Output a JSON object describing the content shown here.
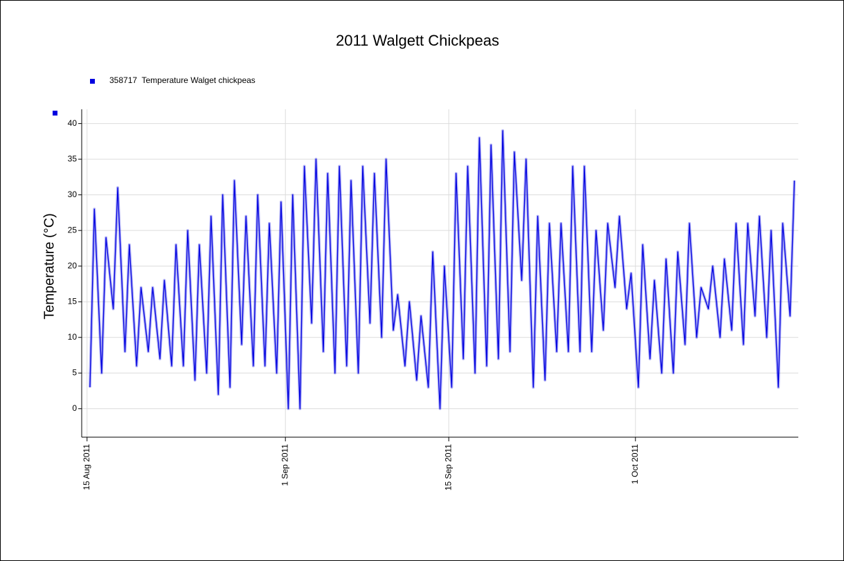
{
  "chart_data": {
    "type": "line",
    "title": "2011 Walgett Chickpeas",
    "y_label": "Temperature (°C)",
    "series": [
      {
        "name": "358717  Temperature Walget chickpeas",
        "color": "#0000e0",
        "x": [
          "2011-08-15T06:00",
          "2011-08-15T15:00",
          "2011-08-16T06:00",
          "2011-08-16T15:00",
          "2011-08-17T06:00",
          "2011-08-17T15:00",
          "2011-08-18T06:00",
          "2011-08-18T15:00",
          "2011-08-19T06:00",
          "2011-08-19T15:00",
          "2011-08-20T06:00",
          "2011-08-20T15:00",
          "2011-08-21T06:00",
          "2011-08-21T15:00",
          "2011-08-22T06:00",
          "2011-08-22T15:00",
          "2011-08-23T06:00",
          "2011-08-23T15:00",
          "2011-08-24T06:00",
          "2011-08-24T15:00",
          "2011-08-25T06:00",
          "2011-08-25T15:00",
          "2011-08-26T06:00",
          "2011-08-26T15:00",
          "2011-08-27T06:00",
          "2011-08-27T15:00",
          "2011-08-28T06:00",
          "2011-08-28T15:00",
          "2011-08-29T06:00",
          "2011-08-29T15:00",
          "2011-08-30T06:00",
          "2011-08-30T15:00",
          "2011-08-31T06:00",
          "2011-08-31T15:00",
          "2011-09-01T06:00",
          "2011-09-01T15:00",
          "2011-09-02T06:00",
          "2011-09-02T15:00",
          "2011-09-03T06:00",
          "2011-09-03T15:00",
          "2011-09-04T06:00",
          "2011-09-04T15:00",
          "2011-09-05T06:00",
          "2011-09-05T15:00",
          "2011-09-06T06:00",
          "2011-09-06T15:00",
          "2011-09-07T06:00",
          "2011-09-07T15:00",
          "2011-09-08T06:00",
          "2011-09-08T15:00",
          "2011-09-09T06:00",
          "2011-09-09T15:00",
          "2011-09-10T06:00",
          "2011-09-10T15:00",
          "2011-09-11T06:00",
          "2011-09-11T15:00",
          "2011-09-12T06:00",
          "2011-09-12T15:00",
          "2011-09-13T06:00",
          "2011-09-13T15:00",
          "2011-09-14T06:00",
          "2011-09-14T15:00",
          "2011-09-15T06:00",
          "2011-09-15T15:00",
          "2011-09-16T06:00",
          "2011-09-16T15:00",
          "2011-09-17T06:00",
          "2011-09-17T15:00",
          "2011-09-18T06:00",
          "2011-09-18T15:00",
          "2011-09-19T06:00",
          "2011-09-19T15:00",
          "2011-09-20T06:00",
          "2011-09-20T15:00",
          "2011-09-21T06:00",
          "2011-09-21T15:00",
          "2011-09-22T06:00",
          "2011-09-22T15:00",
          "2011-09-23T06:00",
          "2011-09-23T15:00",
          "2011-09-24T06:00",
          "2011-09-24T15:00",
          "2011-09-25T06:00",
          "2011-09-25T15:00",
          "2011-09-26T06:00",
          "2011-09-26T15:00",
          "2011-09-27T06:00",
          "2011-09-27T15:00",
          "2011-09-28T06:00",
          "2011-09-28T15:00",
          "2011-09-29T06:00",
          "2011-09-29T15:00",
          "2011-09-30T06:00",
          "2011-09-30T15:00",
          "2011-10-01T06:00",
          "2011-10-01T15:00",
          "2011-10-02T06:00",
          "2011-10-02T15:00",
          "2011-10-03T06:00",
          "2011-10-03T15:00",
          "2011-10-04T06:00",
          "2011-10-04T15:00",
          "2011-10-05T06:00",
          "2011-10-05T15:00",
          "2011-10-06T06:00",
          "2011-10-06T15:00",
          "2011-10-07T06:00",
          "2011-10-07T15:00",
          "2011-10-08T06:00",
          "2011-10-08T15:00",
          "2011-10-09T06:00",
          "2011-10-09T15:00",
          "2011-10-10T06:00",
          "2011-10-10T15:00",
          "2011-10-11T06:00",
          "2011-10-11T15:00",
          "2011-10-12T06:00",
          "2011-10-12T15:00",
          "2011-10-13T06:00",
          "2011-10-13T15:00",
          "2011-10-14T06:00",
          "2011-10-14T15:00"
        ],
        "values": [
          3,
          28,
          5,
          24,
          14,
          31,
          8,
          23,
          6,
          17,
          8,
          17,
          7,
          18,
          6,
          23,
          6,
          25,
          4,
          23,
          5,
          27,
          2,
          30,
          3,
          32,
          9,
          27,
          6,
          30,
          6,
          26,
          5,
          29,
          0,
          30,
          0,
          34,
          12,
          35,
          8,
          33,
          5,
          34,
          6,
          32,
          5,
          34,
          12,
          33,
          10,
          35,
          11,
          16,
          6,
          15,
          4,
          13,
          3,
          22,
          0,
          20,
          3,
          33,
          7,
          34,
          5,
          38,
          6,
          37,
          7,
          39,
          8,
          36,
          18,
          35,
          3,
          27,
          4,
          26,
          8,
          26,
          8,
          34,
          8,
          34,
          8,
          25,
          11,
          26,
          17,
          27,
          14,
          19,
          3,
          23,
          7,
          18,
          5,
          21,
          5,
          22,
          9,
          26,
          10,
          17,
          14,
          20,
          10,
          21,
          11,
          26,
          9,
          26,
          13,
          27,
          10,
          25,
          3,
          26,
          13,
          32
        ]
      }
    ],
    "xlim": [
      "2011-08-14T13:00",
      "2011-10-14T23:00"
    ],
    "xticks": [
      {
        "value": "2011-08-15",
        "label": "15 Aug 2011"
      },
      {
        "value": "2011-09-01",
        "label": "1 Sep 2011"
      },
      {
        "value": "2011-09-15",
        "label": "15 Sep 2011"
      },
      {
        "value": "2011-10-01",
        "label": "1 Oct 2011"
      }
    ],
    "ylim": [
      -4,
      42
    ],
    "yticks": [
      0,
      5,
      10,
      15,
      20,
      25,
      30,
      35,
      40
    ],
    "grid": true
  }
}
